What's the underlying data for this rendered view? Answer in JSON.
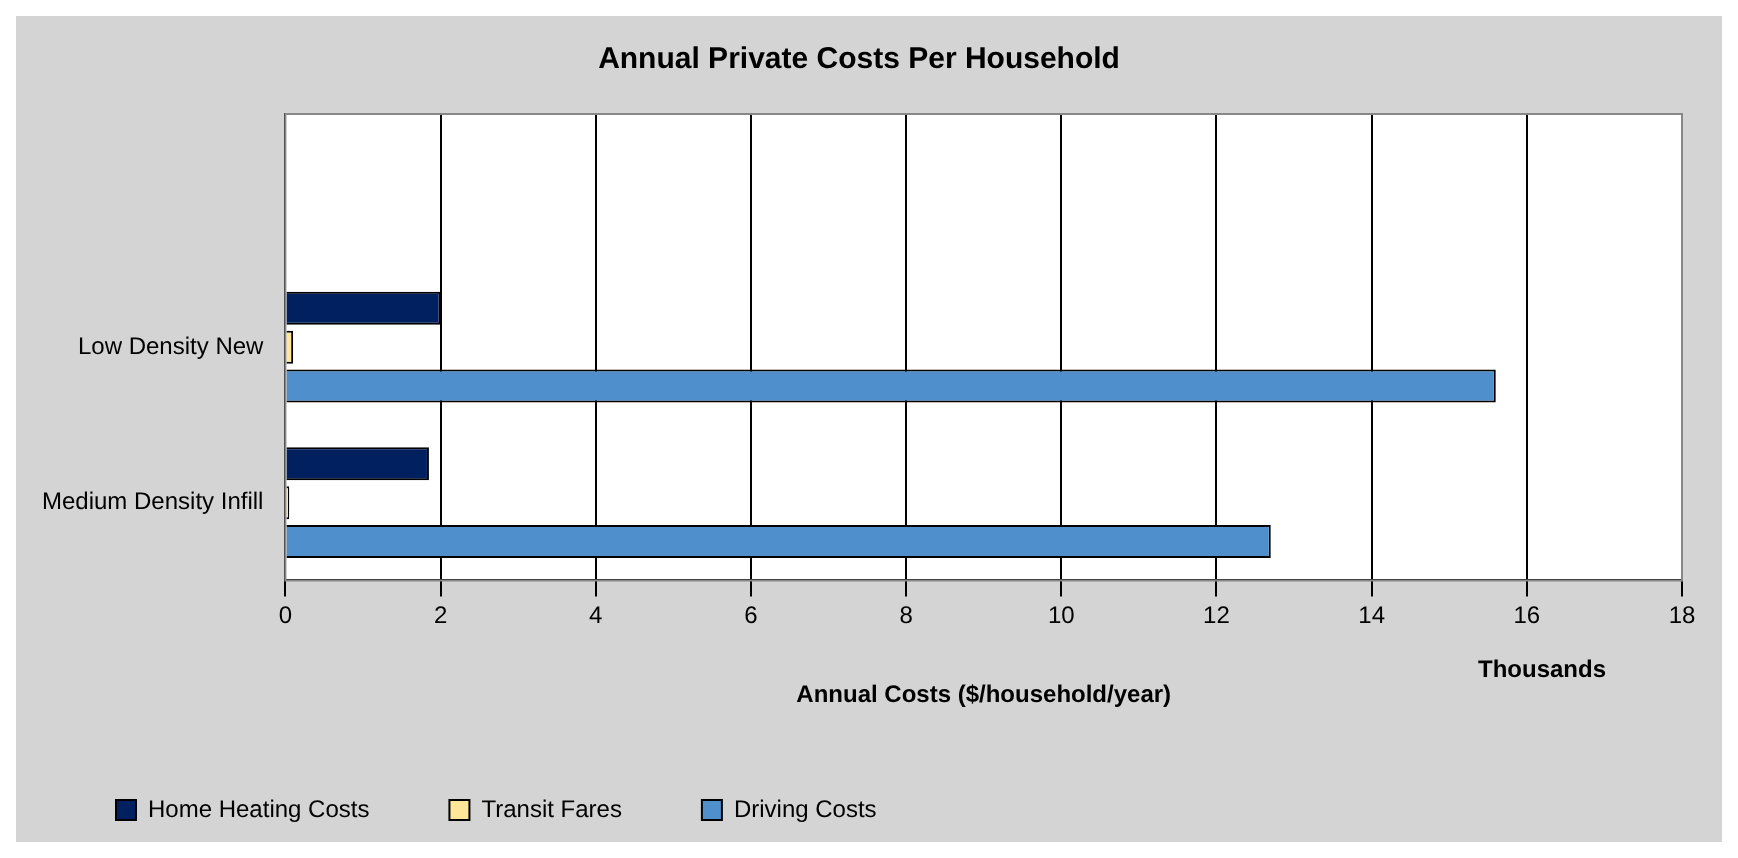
{
  "chart_data": {
    "type": "bar",
    "orientation": "horizontal",
    "title": "Annual Private Costs Per Household",
    "xlabel": "Annual Costs ($/household/year)",
    "annotations": [
      "Thousands"
    ],
    "categories": [
      null,
      "Low Density New",
      "Medium Density Infill"
    ],
    "series": [
      {
        "name": "Home Heating Costs",
        "color": "#002060",
        "values": [
          null,
          2.0,
          1.85
        ]
      },
      {
        "name": "Transit Fares",
        "color": "#ffe699",
        "values": [
          null,
          0.1,
          0.05
        ]
      },
      {
        "name": "Driving Costs",
        "color": "#4f8fcc",
        "values": [
          null,
          15.6,
          12.7
        ]
      }
    ],
    "xlim": [
      0,
      18
    ],
    "xticks": [
      0,
      2,
      4,
      6,
      8,
      10,
      12,
      14,
      16,
      18
    ],
    "grid": "x",
    "legend": "bottom left"
  }
}
